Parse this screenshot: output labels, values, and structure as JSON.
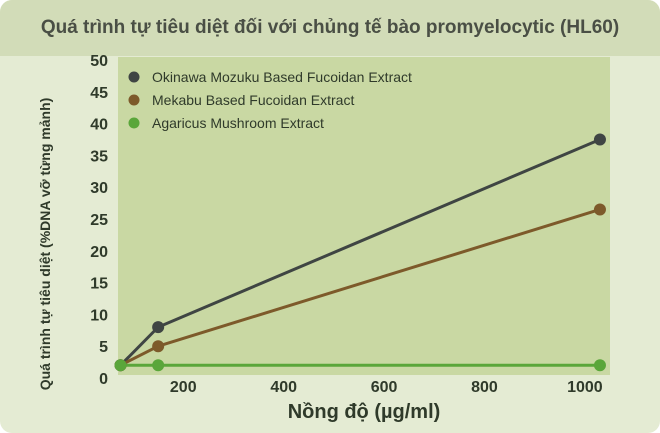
{
  "chart_data": {
    "type": "line",
    "title": "Quá trình tự tiêu diệt đối với chủng tế bào promyelocytic (HL60)",
    "xlabel": "Nồng độ (µg/ml)",
    "ylabel": "Quá trình tự tiêu diệt (%DNA vỡ từng mảnh)",
    "xlim": [
      70,
      1050
    ],
    "ylim": [
      0,
      50
    ],
    "x_ticks": [
      200,
      400,
      600,
      800,
      1000
    ],
    "y_ticks": [
      0,
      5,
      10,
      15,
      20,
      25,
      30,
      35,
      40,
      45,
      50
    ],
    "x_tick_labels": [
      "200",
      "400",
      "600",
      "800",
      "1000"
    ],
    "y_tick_labels": [
      "0",
      "5",
      "10",
      "15",
      "20",
      "25",
      "30",
      "35",
      "40",
      "45",
      "50"
    ],
    "grid": false,
    "legend_position": "top-left",
    "x": [
      75,
      150,
      1030
    ],
    "series": [
      {
        "name": "Okinawa Mozuku Based Fucoidan Extract",
        "values": [
          2,
          8,
          37.5
        ],
        "color": "#3f4543"
      },
      {
        "name": "Mekabu Based Fucoidan Extract",
        "values": [
          2,
          5,
          26.5
        ],
        "color": "#7d5a2a"
      },
      {
        "name": "Agaricus Mushroom Extract",
        "values": [
          2,
          2,
          2
        ],
        "color": "#5aa63a"
      }
    ]
  },
  "colors": {
    "background": "#e4ebd3",
    "title_band": "#d2dcb8",
    "plot_area": "#c9d8a3",
    "text": "#2f3a2a"
  }
}
